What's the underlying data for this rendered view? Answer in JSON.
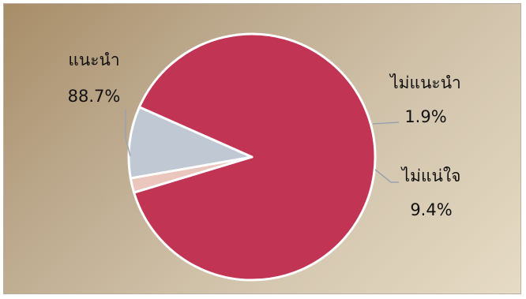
{
  "chart_data": {
    "type": "pie",
    "title": "",
    "slices": [
      {
        "label": "แนะนำ",
        "value": 88.7,
        "value_label": "88.7%",
        "color": "#c13453"
      },
      {
        "label": "ไม่แนะนำ",
        "value": 1.9,
        "value_label": "1.9%",
        "color": "#ebc6bd"
      },
      {
        "label": "ไม่แน่ใจ",
        "value": 9.4,
        "value_label": "9.4%",
        "color": "#c0c8d4"
      }
    ],
    "legend": "none",
    "data_labels": "outside"
  },
  "colors": {
    "slice_border": "#ffffff",
    "leader_line": "#9aa3ad"
  }
}
